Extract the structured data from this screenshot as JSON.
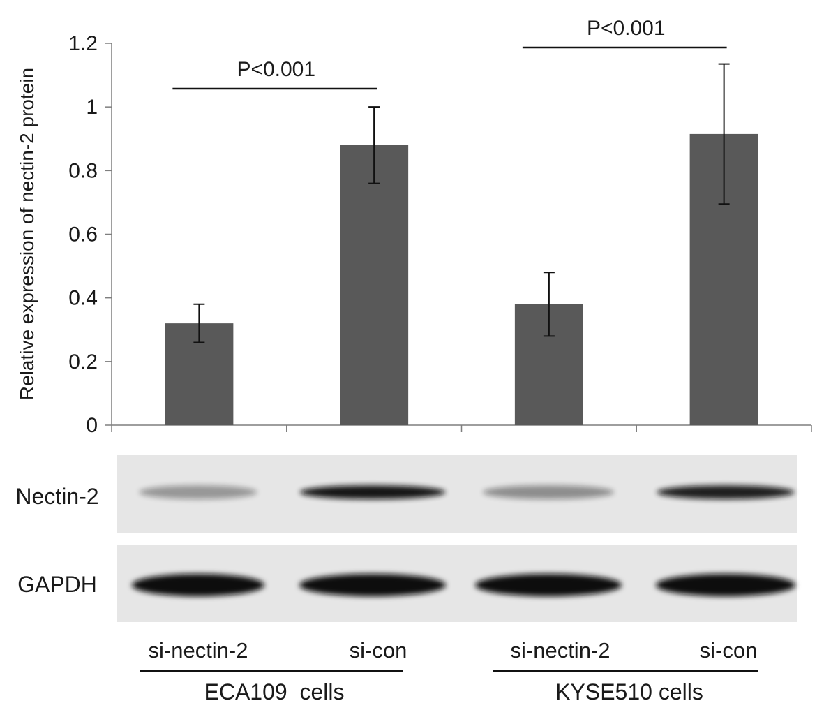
{
  "chart_data": {
    "type": "bar",
    "ylabel": "Relative expression of nectin-2 protein",
    "ylim": [
      0,
      1.2
    ],
    "yticks": [
      "0",
      "0.2",
      "0.4",
      "0.6",
      "0.8",
      "1",
      "1.2"
    ],
    "ytick_values": [
      0,
      0.2,
      0.4,
      0.6,
      0.8,
      1.0,
      1.2
    ],
    "categories": [
      "si-nectin-2",
      "si-con",
      "si-nectin-2",
      "si-con"
    ],
    "groups": [
      "ECA109  cells",
      "KYSE510 cells"
    ],
    "values": [
      0.32,
      0.88,
      0.38,
      0.915
    ],
    "errors": [
      0.06,
      0.12,
      0.1,
      0.22
    ],
    "bar_color": "#595959",
    "significance": [
      {
        "label": "P<0.001",
        "from": 0,
        "to": 1
      },
      {
        "label": "P<0.001",
        "from": 2,
        "to": 3
      }
    ],
    "grid": false
  },
  "blot": {
    "rows": [
      {
        "label": "Nectin-2",
        "band_intensity": [
          0.25,
          0.95,
          0.3,
          0.9
        ]
      },
      {
        "label": "GAPDH",
        "band_intensity": [
          1.0,
          1.0,
          1.0,
          1.0
        ]
      }
    ],
    "background_color": "#e6e6e6",
    "band_color": "#111111"
  }
}
